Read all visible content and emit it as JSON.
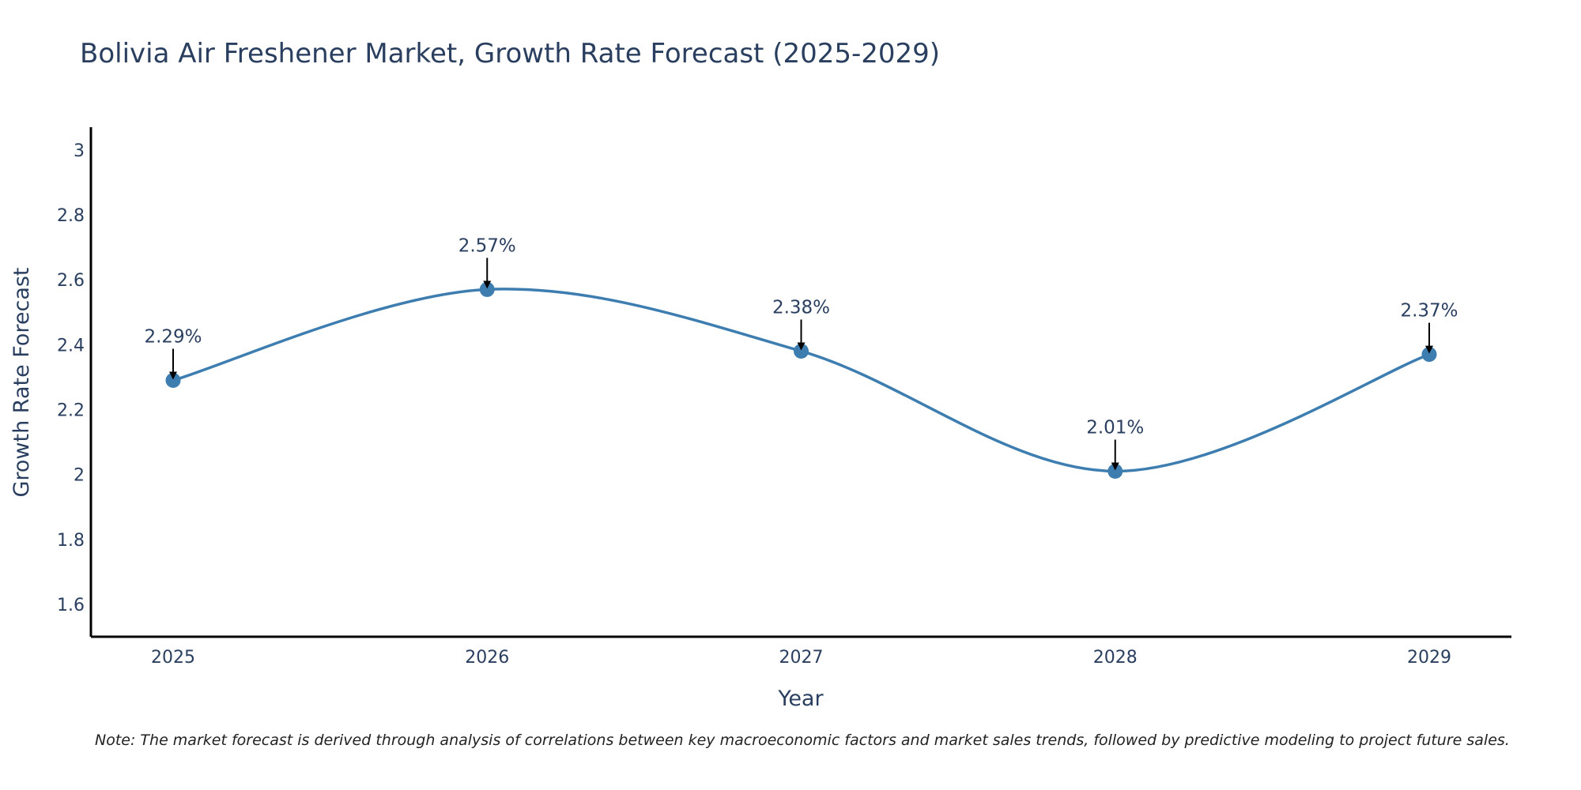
{
  "chart_data": {
    "type": "line",
    "title": "Bolivia Air Freshener Market, Growth Rate Forecast (2025-2029)",
    "xlabel": "Year",
    "ylabel": "Growth Rate Forecast",
    "categories": [
      "2025",
      "2026",
      "2027",
      "2028",
      "2029"
    ],
    "series": [
      {
        "name": "Growth Rate Forecast",
        "values": [
          2.29,
          2.57,
          2.38,
          2.01,
          2.37
        ],
        "color": "#3d7db0"
      }
    ],
    "data_labels": [
      "2.29%",
      "2.57%",
      "2.38%",
      "2.01%",
      "2.37%"
    ],
    "ylim": [
      1.5,
      3.07
    ],
    "yticks": [
      1.6,
      1.8,
      2,
      2.2,
      2.4,
      2.6,
      2.8,
      3
    ],
    "ytick_labels": [
      "1.6",
      "1.8",
      "2",
      "2.2",
      "2.4",
      "2.6",
      "2.8",
      "3"
    ],
    "grid": false,
    "line_shape": "spline",
    "annotation_arrow_color": "#000000",
    "axis_color": "#000000",
    "note": "Note: The market forecast is derived through analysis of correlations between key macroeconomic factors and market sales trends, followed by predictive modeling to project future sales."
  }
}
